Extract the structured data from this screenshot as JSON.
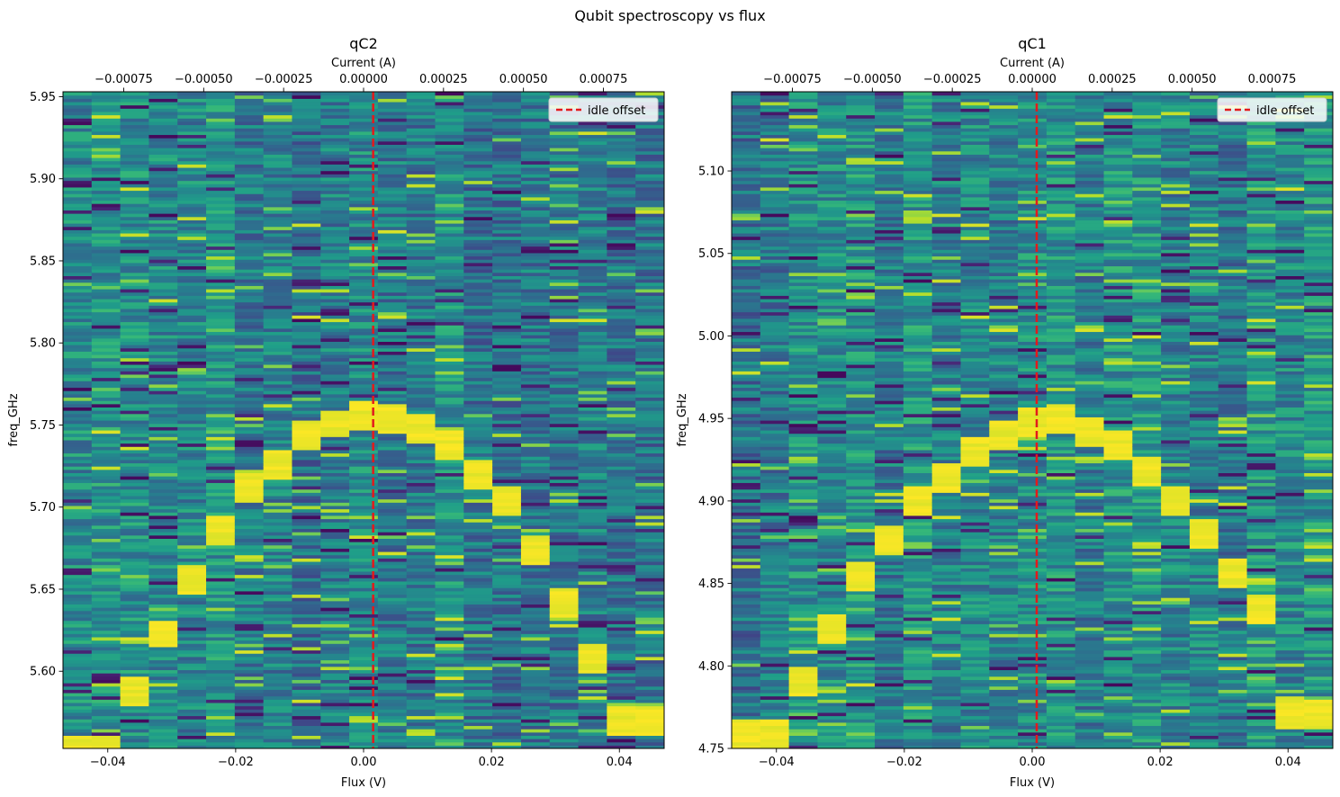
{
  "figure": {
    "title": "Qubit spectroscopy vs flux"
  },
  "chart_data": [
    {
      "type": "heatmap",
      "title": "qC2",
      "xlabel": "Flux (V)",
      "ylabel": "freq_GHz",
      "top_xlabel": "Current (A)",
      "xlim": [
        -0.047,
        0.047
      ],
      "ylim": [
        5.553,
        5.953
      ],
      "top_xlim": [
        -0.00094,
        0.00094
      ],
      "xticks": [
        -0.04,
        -0.02,
        0.0,
        0.02,
        0.04
      ],
      "xtick_labels": [
        "−0.04",
        "−0.02",
        "0.00",
        "0.02",
        "0.04"
      ],
      "yticks": [
        5.6,
        5.65,
        5.7,
        5.75,
        5.8,
        5.85,
        5.9,
        5.95
      ],
      "ytick_labels": [
        "5.60",
        "5.65",
        "5.70",
        "5.75",
        "5.80",
        "5.85",
        "5.90",
        "5.95"
      ],
      "top_xticks": [
        -0.00075,
        -0.0005,
        -0.00025,
        0.0,
        0.00025,
        0.0005,
        0.00075
      ],
      "top_xtick_labels": [
        "−0.00075",
        "−0.00050",
        "−0.00025",
        "0.00000",
        "0.00025",
        "0.00050",
        "0.00075"
      ],
      "n_flux_columns": 21,
      "n_freq_rows": 200,
      "colormap": "viridis",
      "resonance_peaks": [
        {
          "flux": -0.0423,
          "freq": 5.553
        },
        {
          "flux": -0.0376,
          "freq": 5.588
        },
        {
          "flux": -0.0329,
          "freq": 5.623
        },
        {
          "flux": -0.0282,
          "freq": 5.656
        },
        {
          "flux": -0.0235,
          "freq": 5.686
        },
        {
          "flux": -0.0188,
          "freq": 5.712
        },
        {
          "flux": -0.0141,
          "freq": 5.727
        },
        {
          "flux": -0.0094,
          "freq": 5.744
        },
        {
          "flux": -0.0047,
          "freq": 5.751
        },
        {
          "flux": 0.0,
          "freq": 5.756
        },
        {
          "flux": 0.0047,
          "freq": 5.755
        },
        {
          "flux": 0.0094,
          "freq": 5.749
        },
        {
          "flux": 0.0141,
          "freq": 5.739
        },
        {
          "flux": 0.0188,
          "freq": 5.721
        },
        {
          "flux": 0.0235,
          "freq": 5.704
        },
        {
          "flux": 0.0282,
          "freq": 5.674
        },
        {
          "flux": 0.0329,
          "freq": 5.643
        },
        {
          "flux": 0.0376,
          "freq": 5.609
        },
        {
          "flux": 0.0423,
          "freq": 5.57
        }
      ],
      "idle_offset": 0.0015,
      "legend": {
        "label": "idle offset",
        "location": "upper right"
      },
      "idle_color": "#e31a1c"
    },
    {
      "type": "heatmap",
      "title": "qC1",
      "xlabel": "Flux (V)",
      "ylabel": "freq_GHz",
      "top_xlabel": "Current (A)",
      "xlim": [
        -0.047,
        0.047
      ],
      "ylim": [
        4.75,
        5.148
      ],
      "top_xlim": [
        -0.00094,
        0.00094
      ],
      "xticks": [
        -0.04,
        -0.02,
        0.0,
        0.02,
        0.04
      ],
      "xtick_labels": [
        "−0.04",
        "−0.02",
        "0.00",
        "0.02",
        "0.04"
      ],
      "yticks": [
        4.75,
        4.8,
        4.85,
        4.9,
        4.95,
        5.0,
        5.05,
        5.1
      ],
      "ytick_labels": [
        "4.75",
        "4.80",
        "4.85",
        "4.90",
        "4.95",
        "5.00",
        "5.05",
        "5.10"
      ],
      "top_xticks": [
        -0.00075,
        -0.0005,
        -0.00025,
        0.0,
        0.00025,
        0.0005,
        0.00075
      ],
      "top_xtick_labels": [
        "−0.00075",
        "−0.00050",
        "−0.00025",
        "0.00000",
        "0.00025",
        "0.00050",
        "0.00075"
      ],
      "n_flux_columns": 21,
      "n_freq_rows": 200,
      "colormap": "viridis",
      "resonance_peaks": [
        {
          "flux": -0.0423,
          "freq": 4.758
        },
        {
          "flux": -0.0376,
          "freq": 4.79
        },
        {
          "flux": -0.0329,
          "freq": 4.822
        },
        {
          "flux": -0.0282,
          "freq": 4.855
        },
        {
          "flux": -0.0235,
          "freq": 4.876
        },
        {
          "flux": -0.0188,
          "freq": 4.9
        },
        {
          "flux": -0.0141,
          "freq": 4.915
        },
        {
          "flux": -0.0094,
          "freq": 4.93
        },
        {
          "flux": -0.0047,
          "freq": 4.94
        },
        {
          "flux": 0.0,
          "freq": 4.948
        },
        {
          "flux": 0.0047,
          "freq": 4.95
        },
        {
          "flux": 0.0094,
          "freq": 4.943
        },
        {
          "flux": 0.0141,
          "freq": 4.934
        },
        {
          "flux": 0.0188,
          "freq": 4.919
        },
        {
          "flux": 0.0235,
          "freq": 4.9
        },
        {
          "flux": 0.0282,
          "freq": 4.88
        },
        {
          "flux": 0.0329,
          "freq": 4.857
        },
        {
          "flux": 0.0376,
          "freq": 4.834
        },
        {
          "flux": 0.0423,
          "freq": 4.77
        }
      ],
      "idle_offset": 0.0007,
      "legend": {
        "label": "idle offset",
        "location": "upper right"
      },
      "idle_color": "#e31a1c"
    }
  ]
}
